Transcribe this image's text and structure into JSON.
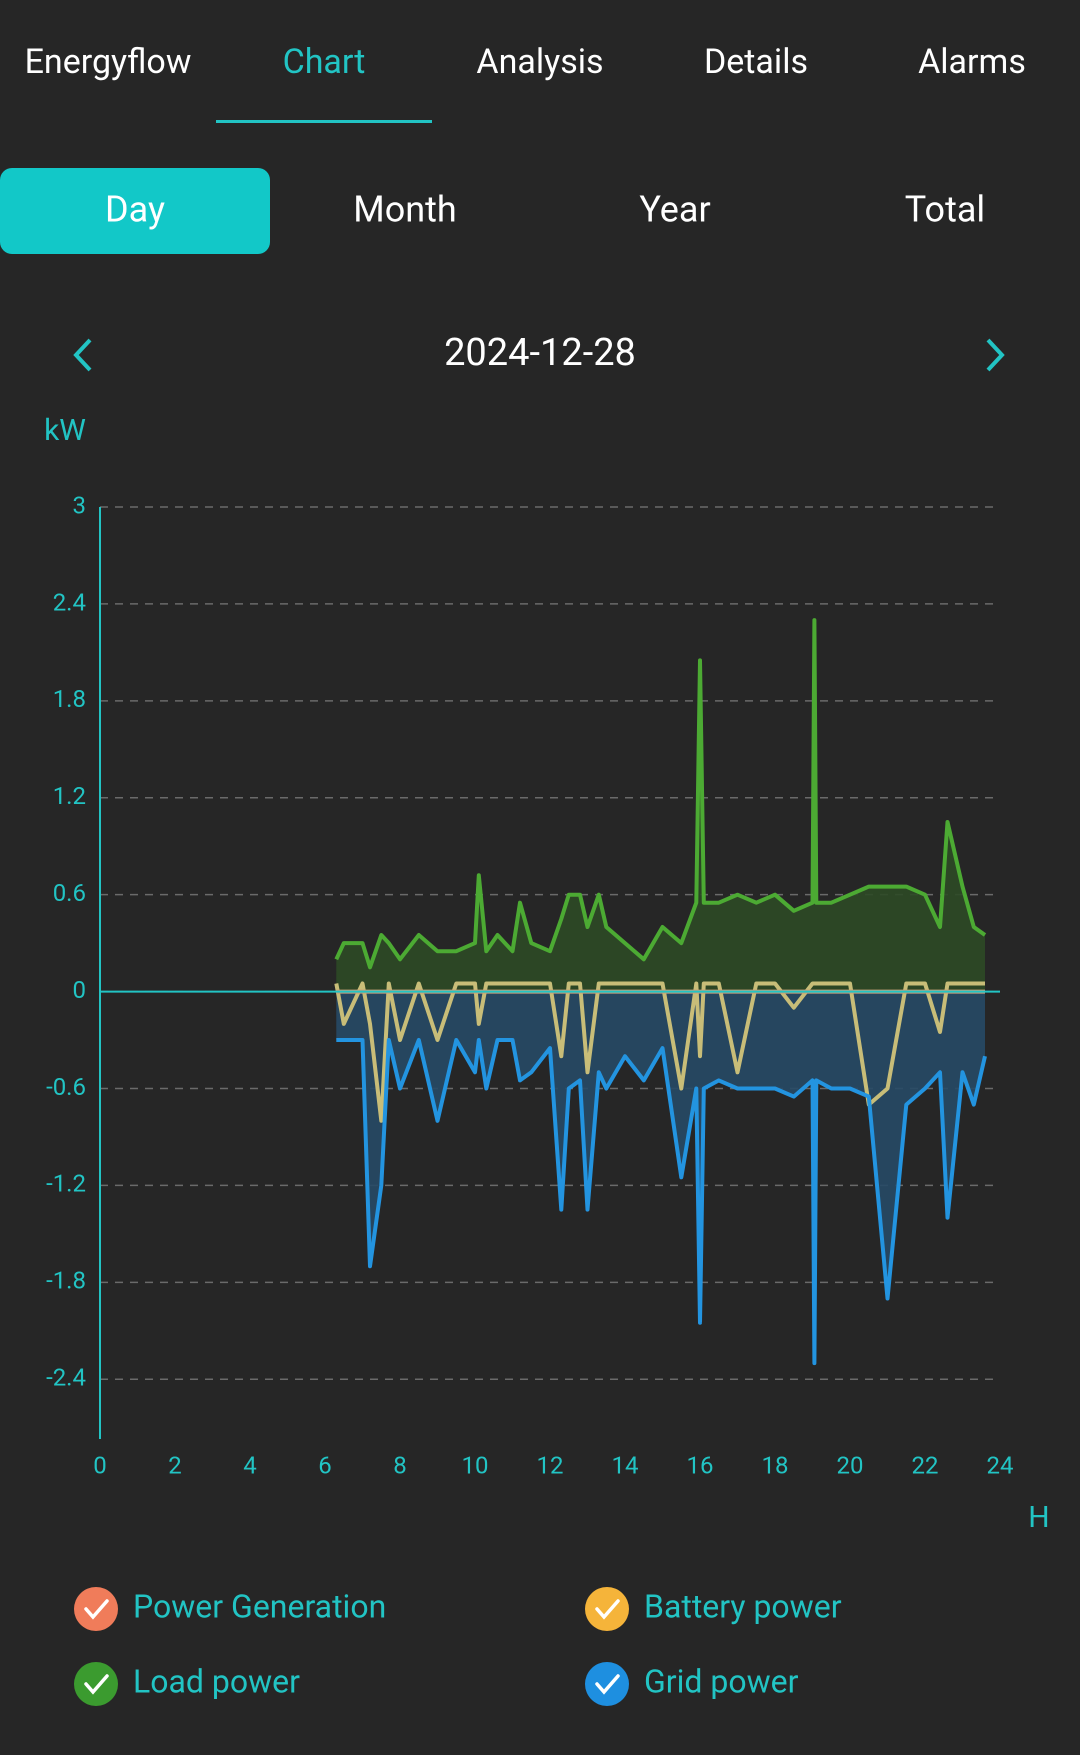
{
  "tabs": [
    "Energyflow",
    "Chart",
    "Analysis",
    "Details",
    "Alarms"
  ],
  "periods": [
    "Day",
    "Month",
    "Year",
    "Total"
  ],
  "date": "2024-12-28",
  "chart_data": {
    "type": "line",
    "y_label": "kW",
    "x_label": "H",
    "xlim": [
      0,
      24
    ],
    "xticks": [
      0,
      2,
      4,
      6,
      8,
      10,
      12,
      14,
      16,
      18,
      20,
      22,
      24
    ],
    "ylim": [
      -2.77,
      3
    ],
    "yticks": [
      -2.4,
      -1.8,
      -1.2,
      -0.6,
      0,
      0.6,
      1.2,
      1.8,
      2.4,
      3
    ],
    "grid": true,
    "x": [
      6.3,
      6.5,
      7.0,
      7.2,
      7.5,
      7.7,
      8.0,
      8.5,
      9.0,
      9.5,
      10.0,
      10.1,
      10.3,
      10.6,
      11.0,
      11.2,
      11.5,
      12.0,
      12.3,
      12.5,
      12.8,
      13.0,
      13.3,
      13.5,
      14.0,
      14.5,
      15.0,
      15.5,
      15.9,
      16.0,
      16.1,
      16.5,
      17.0,
      17.5,
      18.0,
      18.5,
      19.0,
      19.05,
      19.1,
      19.5,
      20.0,
      20.5,
      21.0,
      21.5,
      22.0,
      22.4,
      22.6,
      23.0,
      23.3,
      23.6
    ],
    "series": [
      {
        "name": "Power Generation",
        "color": "#f07c5a",
        "line_color": "#c9a07a",
        "fill": false,
        "values": [
          0,
          0,
          0,
          0,
          0,
          0,
          0,
          0,
          0,
          0,
          0,
          0,
          0,
          0,
          0,
          0,
          0,
          0,
          0,
          0,
          0,
          0,
          0,
          0,
          0,
          0,
          0,
          0,
          0,
          0,
          0,
          0,
          0,
          0,
          0,
          0,
          0,
          0,
          0,
          0,
          0,
          0,
          0,
          0,
          0,
          0,
          0,
          0,
          0,
          0
        ]
      },
      {
        "name": "Battery power",
        "color": "#f5b43a",
        "line_color": "#c8bd78",
        "fill": false,
        "values": [
          0.05,
          -0.2,
          0.05,
          -0.2,
          -0.8,
          0.05,
          -0.3,
          0.05,
          -0.3,
          0.05,
          0.05,
          -0.2,
          0.05,
          0.05,
          0.05,
          0.05,
          0.05,
          0.05,
          -0.4,
          0.05,
          0.05,
          -0.5,
          0.05,
          0.05,
          0.05,
          0.05,
          0.05,
          -0.6,
          0.05,
          -0.4,
          0.05,
          0.05,
          -0.5,
          0.05,
          0.05,
          -0.1,
          0.05,
          0.05,
          0.05,
          0.05,
          0.05,
          -0.7,
          -0.6,
          0.05,
          0.05,
          -0.25,
          0.05,
          0.05,
          0.05,
          0.05
        ]
      },
      {
        "name": "Load power",
        "color": "#3b9b2f",
        "line_color": "#4caa33",
        "fill": true,
        "fill_color": "#2e4a26",
        "values": [
          0.2,
          0.3,
          0.3,
          0.15,
          0.35,
          0.3,
          0.2,
          0.35,
          0.25,
          0.25,
          0.3,
          0.72,
          0.25,
          0.35,
          0.25,
          0.55,
          0.3,
          0.25,
          0.45,
          0.6,
          0.6,
          0.4,
          0.6,
          0.4,
          0.3,
          0.2,
          0.4,
          0.3,
          0.55,
          2.05,
          0.55,
          0.55,
          0.6,
          0.55,
          0.6,
          0.5,
          0.55,
          2.3,
          0.55,
          0.55,
          0.6,
          0.65,
          0.65,
          0.65,
          0.6,
          0.4,
          1.05,
          0.65,
          0.4,
          0.35
        ]
      },
      {
        "name": "Grid power",
        "color": "#1e8fe0",
        "line_color": "#2394e0",
        "fill": true,
        "fill_color": "#274a66",
        "values": [
          -0.3,
          -0.3,
          -0.3,
          -1.7,
          -1.2,
          -0.3,
          -0.6,
          -0.3,
          -0.8,
          -0.3,
          -0.5,
          -0.3,
          -0.6,
          -0.3,
          -0.3,
          -0.55,
          -0.5,
          -0.35,
          -1.35,
          -0.6,
          -0.55,
          -1.35,
          -0.5,
          -0.6,
          -0.4,
          -0.55,
          -0.35,
          -1.15,
          -0.6,
          -2.05,
          -0.6,
          -0.55,
          -0.6,
          -0.6,
          -0.6,
          -0.65,
          -0.55,
          -2.3,
          -0.55,
          -0.6,
          -0.6,
          -0.65,
          -1.9,
          -0.7,
          -0.6,
          -0.5,
          -1.4,
          -0.5,
          -0.7,
          -0.4
        ]
      }
    ]
  }
}
